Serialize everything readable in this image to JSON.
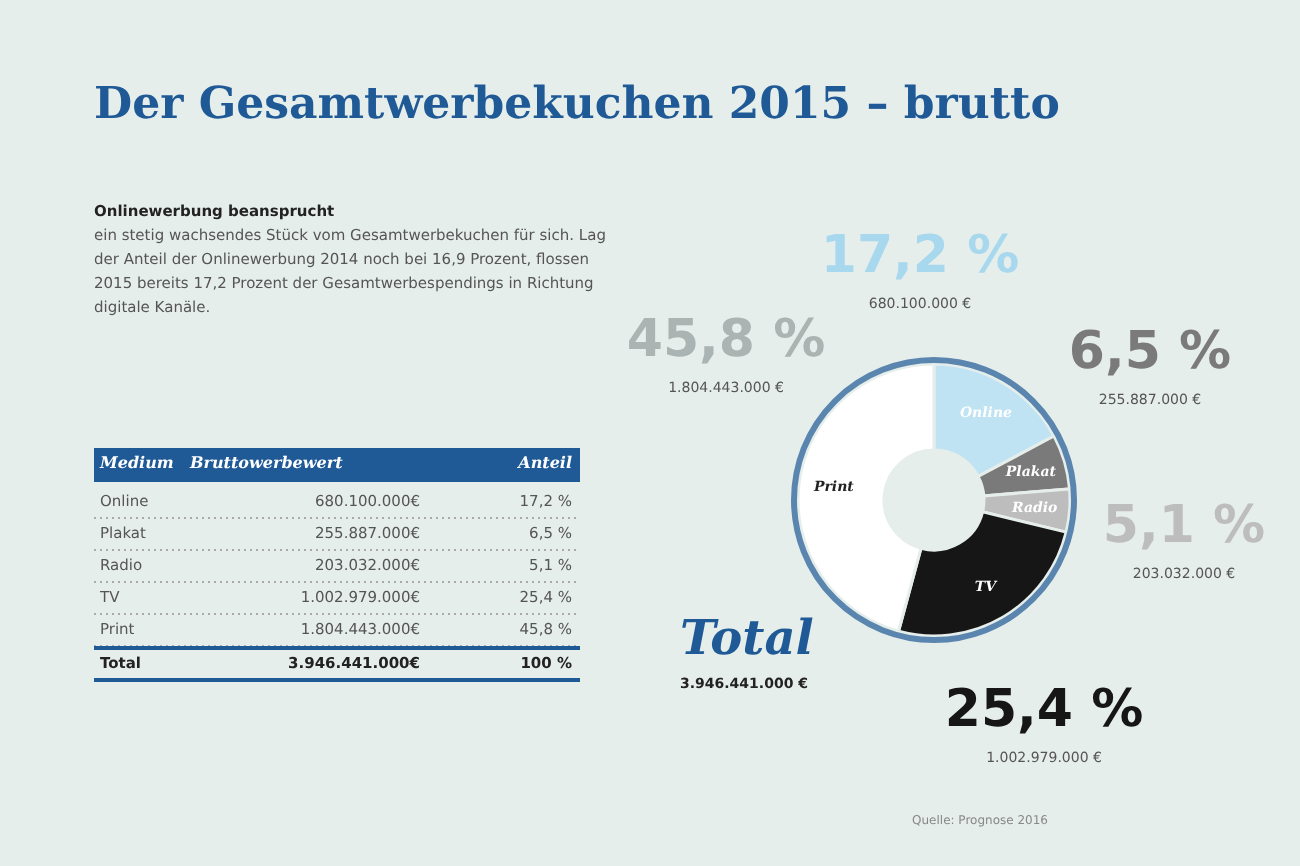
{
  "chart_data": {
    "type": "donut",
    "title": "Der Gesamtwerbekuchen 2015 – brutto",
    "categories": [
      "Online",
      "Plakat",
      "Radio",
      "TV",
      "Print"
    ],
    "values": [
      17.2,
      6.5,
      5.1,
      25.4,
      45.8
    ],
    "colors": [
      "#bfe3f3",
      "#7a7a7a",
      "#bdbdbd",
      "#161616",
      "#ffffff"
    ],
    "value_labels": [
      "17,2 %",
      "6,5 %",
      "5,1 %",
      "25,4 %",
      "45,8 %"
    ],
    "annotations": [
      "Onlinewerbung beansprucht",
      "ein stetig wachsendes Stück vom Gesamtwerbekuchen für sich. Lag",
      "der Anteil der Onlinewerbung 2014 noch bei 16,9 Prozent, flossen",
      "2015 bereits 17,2 Prozent der Gesamtwerbespendings in Richtung",
      "digitale Kanäle.",
      "Medium",
      "Bruttowerbewert",
      "Anteil",
      "680.100.000€",
      "255.887.000€",
      "203.032.000€",
      "1.002.979.000€",
      "1.804.443.000€",
      "Total",
      "3.946.441.000€",
      "100 %",
      "Total",
      "3.946.441.000 €",
      "680.100.000 €",
      "255.887.000 €",
      "203.032.000 €",
      "1.002.979.000 €",
      "1.804.443.000 €",
      "Quelle: Prognose 2016"
    ]
  }
}
